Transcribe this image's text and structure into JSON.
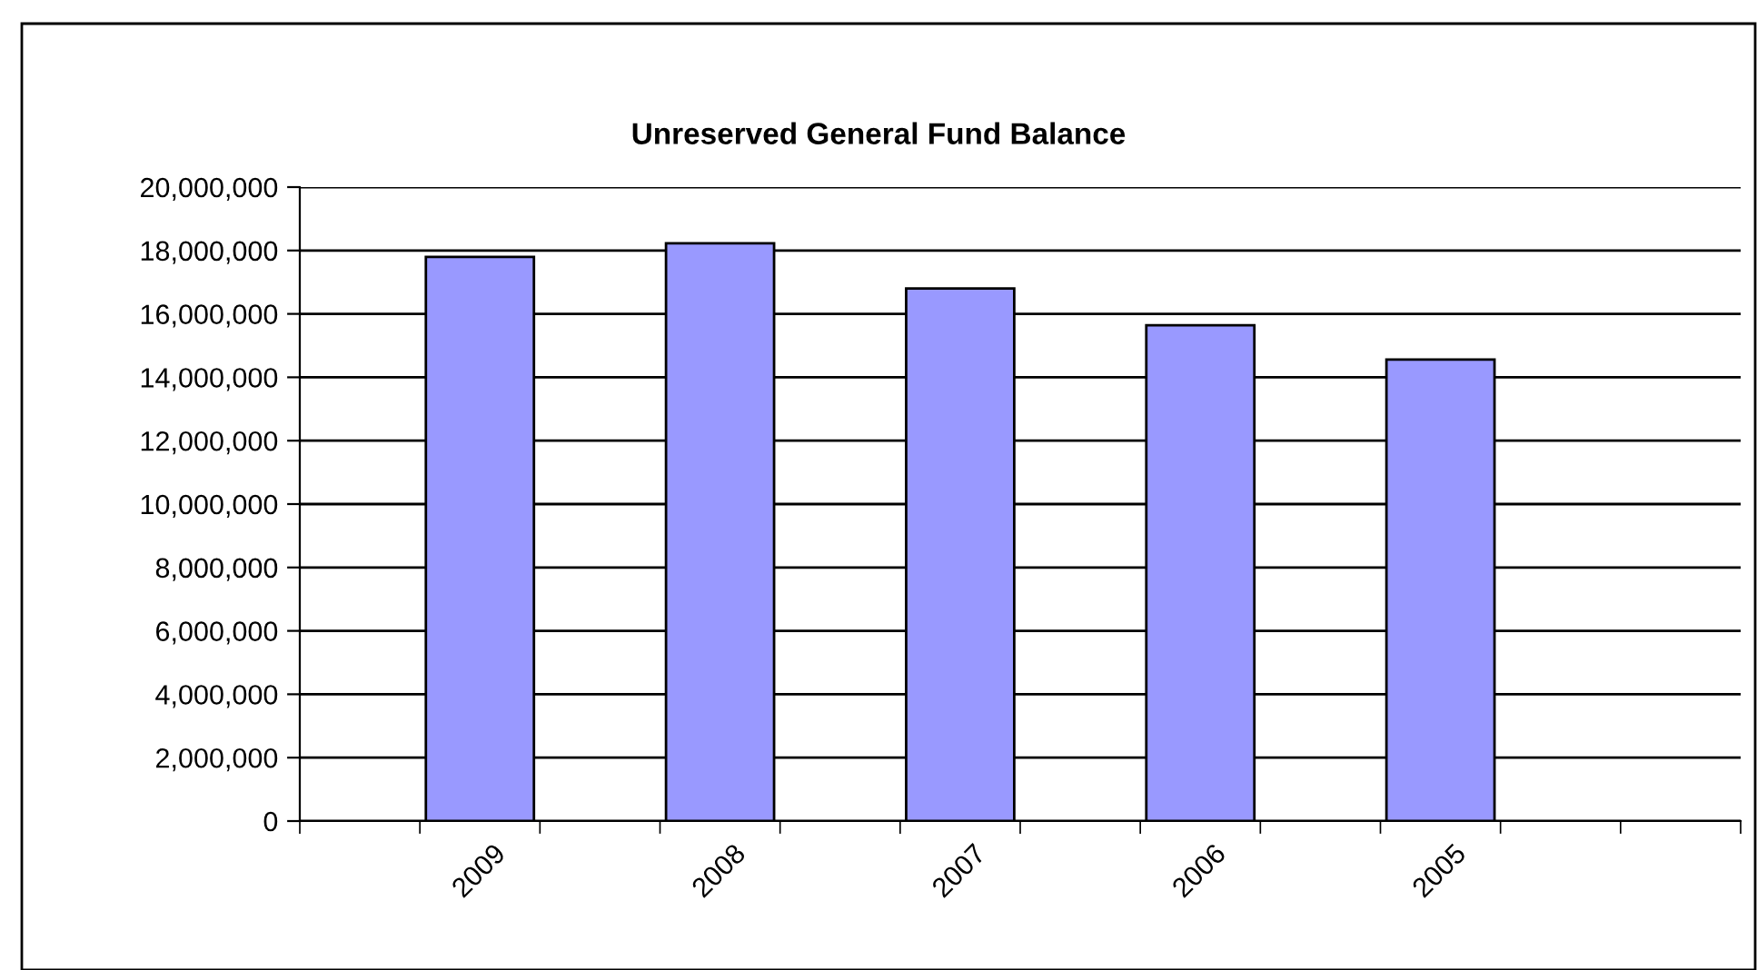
{
  "chart_data": {
    "type": "bar",
    "title": "Unreserved General Fund Balance",
    "categories": [
      null,
      "2009",
      null,
      "2008",
      null,
      "2007",
      null,
      "2006",
      null,
      "2005",
      null,
      null
    ],
    "values": [
      null,
      17800000,
      null,
      18230000,
      null,
      16800000,
      null,
      15640000,
      null,
      14560000,
      null,
      null
    ],
    "color": "#9999ff",
    "ylim": [
      0,
      20000000
    ],
    "yticks": [
      {
        "value": 0,
        "label": "0"
      },
      {
        "value": 2000000,
        "label": "2,000,000"
      },
      {
        "value": 4000000,
        "label": "4,000,000"
      },
      {
        "value": 6000000,
        "label": "6,000,000"
      },
      {
        "value": 8000000,
        "label": "8,000,000"
      },
      {
        "value": 10000000,
        "label": "10,000,000"
      },
      {
        "value": 12000000,
        "label": "12,000,000"
      },
      {
        "value": 14000000,
        "label": "14,000,000"
      },
      {
        "value": 16000000,
        "label": "16,000,000"
      },
      {
        "value": 18000000,
        "label": "18,000,000"
      },
      {
        "value": 20000000,
        "label": "20,000,000"
      }
    ],
    "grid": "y",
    "legend": false
  }
}
